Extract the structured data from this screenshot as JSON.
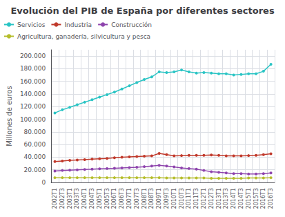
{
  "chart_data": {
    "type": "line",
    "title": "Evolución del PIB de España por diferentes sectores",
    "ylabel": "Millones de euros",
    "categories": [
      "2002T1",
      "2002T3",
      "2003T1",
      "2003T3",
      "2004T1",
      "2004T3",
      "2005T1",
      "2005T3",
      "2006T1",
      "2006T3",
      "2007T1",
      "2007T3",
      "2008T1",
      "2008T3",
      "2009T1",
      "2009T3",
      "2010T1",
      "2010T3",
      "2011T1",
      "2011T3",
      "2012T1",
      "2012T3",
      "2013T1",
      "2013T3",
      "2014T1",
      "2014T3",
      "2015T1",
      "2015T3",
      "2016T1",
      "2016T3"
    ],
    "series": [
      {
        "name": "Servicios",
        "color": "#29c4c4",
        "values": [
          110000,
          115000,
          119000,
          123000,
          127000,
          131000,
          135000,
          139000,
          143000,
          148000,
          153000,
          158000,
          163000,
          167000,
          175000,
          174000,
          175000,
          178000,
          175000,
          173000,
          174000,
          173000,
          172000,
          172000,
          170000,
          171000,
          172000,
          172000,
          176000,
          187000
        ]
      },
      {
        "name": "Industria",
        "color": "#c0392b",
        "values": [
          33000,
          34000,
          35000,
          35500,
          36000,
          37000,
          37500,
          38000,
          39000,
          40000,
          40500,
          41000,
          41500,
          42000,
          46000,
          44000,
          42000,
          42500,
          43000,
          43000,
          43000,
          43500,
          43000,
          42000,
          42000,
          42000,
          42500,
          43000,
          44000,
          45500
        ]
      },
      {
        "name": "Construcción",
        "color": "#8e44ad",
        "values": [
          18000,
          19000,
          19500,
          20000,
          20500,
          21000,
          21500,
          22000,
          22500,
          23000,
          23500,
          24000,
          25000,
          26000,
          27000,
          26000,
          24500,
          23000,
          22000,
          21000,
          19000,
          17000,
          16000,
          15000,
          14000,
          14000,
          13500,
          13500,
          14000,
          15000
        ]
      },
      {
        "name": "Agricultura, ganadería, silvicultura y pesca",
        "color": "#b5bd2b",
        "values": [
          7500,
          7500,
          7500,
          7500,
          7500,
          7500,
          7500,
          7500,
          7500,
          7500,
          7500,
          7500,
          7500,
          7500,
          7500,
          7000,
          7000,
          7000,
          7000,
          7000,
          7000,
          6500,
          6500,
          6500,
          6500,
          6500,
          7000,
          7000,
          7000,
          7500
        ]
      }
    ],
    "ylim": [
      0,
      210000
    ],
    "yticks": [
      0,
      {
        "value": 20000,
        "label": "20.000"
      },
      {
        "value": 40000,
        "label": "40.000"
      },
      {
        "value": 60000,
        "label": "60.000"
      },
      {
        "value": 80000,
        "label": "80.000"
      },
      {
        "value": 100000,
        "label": "100.000"
      },
      {
        "value": 120000,
        "label": "120.000"
      },
      {
        "value": 140000,
        "label": "140.000"
      },
      {
        "value": 160000,
        "label": "160.000"
      },
      {
        "value": 180000,
        "label": "180.000"
      },
      {
        "value": 200000,
        "label": "200.000"
      }
    ],
    "grid": true,
    "legend": "upper left",
    "marker": "circle"
  }
}
